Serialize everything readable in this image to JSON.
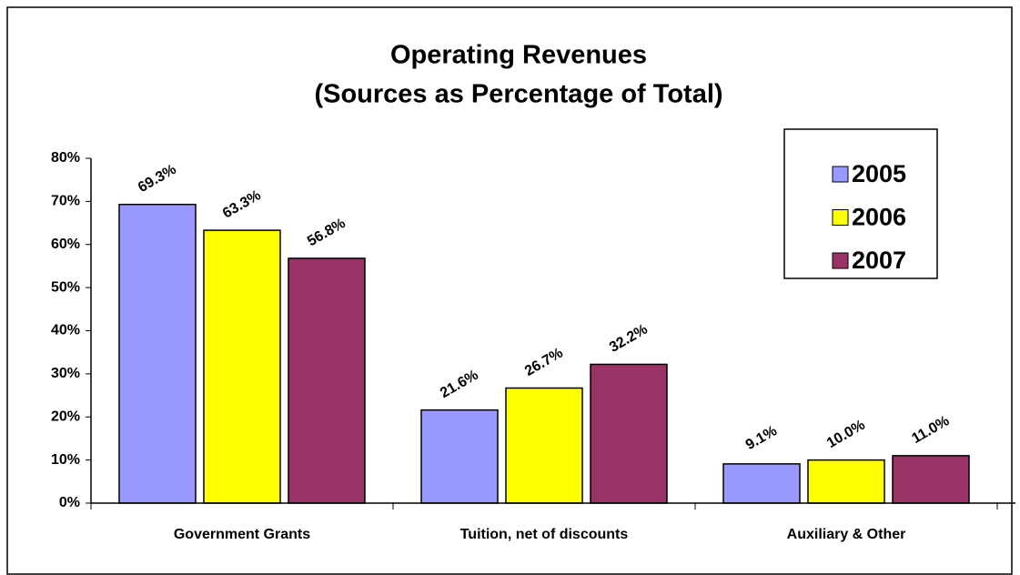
{
  "chart_data": {
    "type": "bar",
    "title": "Operating Revenues",
    "subtitle": "(Sources as Percentage of Total)",
    "categories": [
      "Government Grants",
      "Tuition, net of discounts",
      "Auxiliary & Other"
    ],
    "series": [
      {
        "name": "2005",
        "color": "#9999ff",
        "values": [
          69.3,
          21.6,
          9.1
        ],
        "value_labels": [
          "69.3%",
          "21.6%",
          "9.1%"
        ]
      },
      {
        "name": "2006",
        "color": "#ffff00",
        "values": [
          63.3,
          26.7,
          10.0
        ],
        "value_labels": [
          "63.3%",
          "26.7%",
          "10.0%"
        ]
      },
      {
        "name": "2007",
        "color": "#993366",
        "values": [
          56.8,
          32.2,
          11.0
        ],
        "value_labels": [
          "56.8%",
          "32.2%",
          "11.0%"
        ]
      }
    ],
    "ylim": [
      0,
      80
    ],
    "yticks": [
      {
        "value": 0,
        "label": "0%"
      },
      {
        "value": 10,
        "label": "10%"
      },
      {
        "value": 20,
        "label": "20%"
      },
      {
        "value": 30,
        "label": "30%"
      },
      {
        "value": 40,
        "label": "40%"
      },
      {
        "value": 50,
        "label": "50%"
      },
      {
        "value": 60,
        "label": "60%"
      },
      {
        "value": 70,
        "label": "70%"
      },
      {
        "value": 80,
        "label": "80%"
      }
    ],
    "grid": false,
    "legend": "upper right"
  }
}
